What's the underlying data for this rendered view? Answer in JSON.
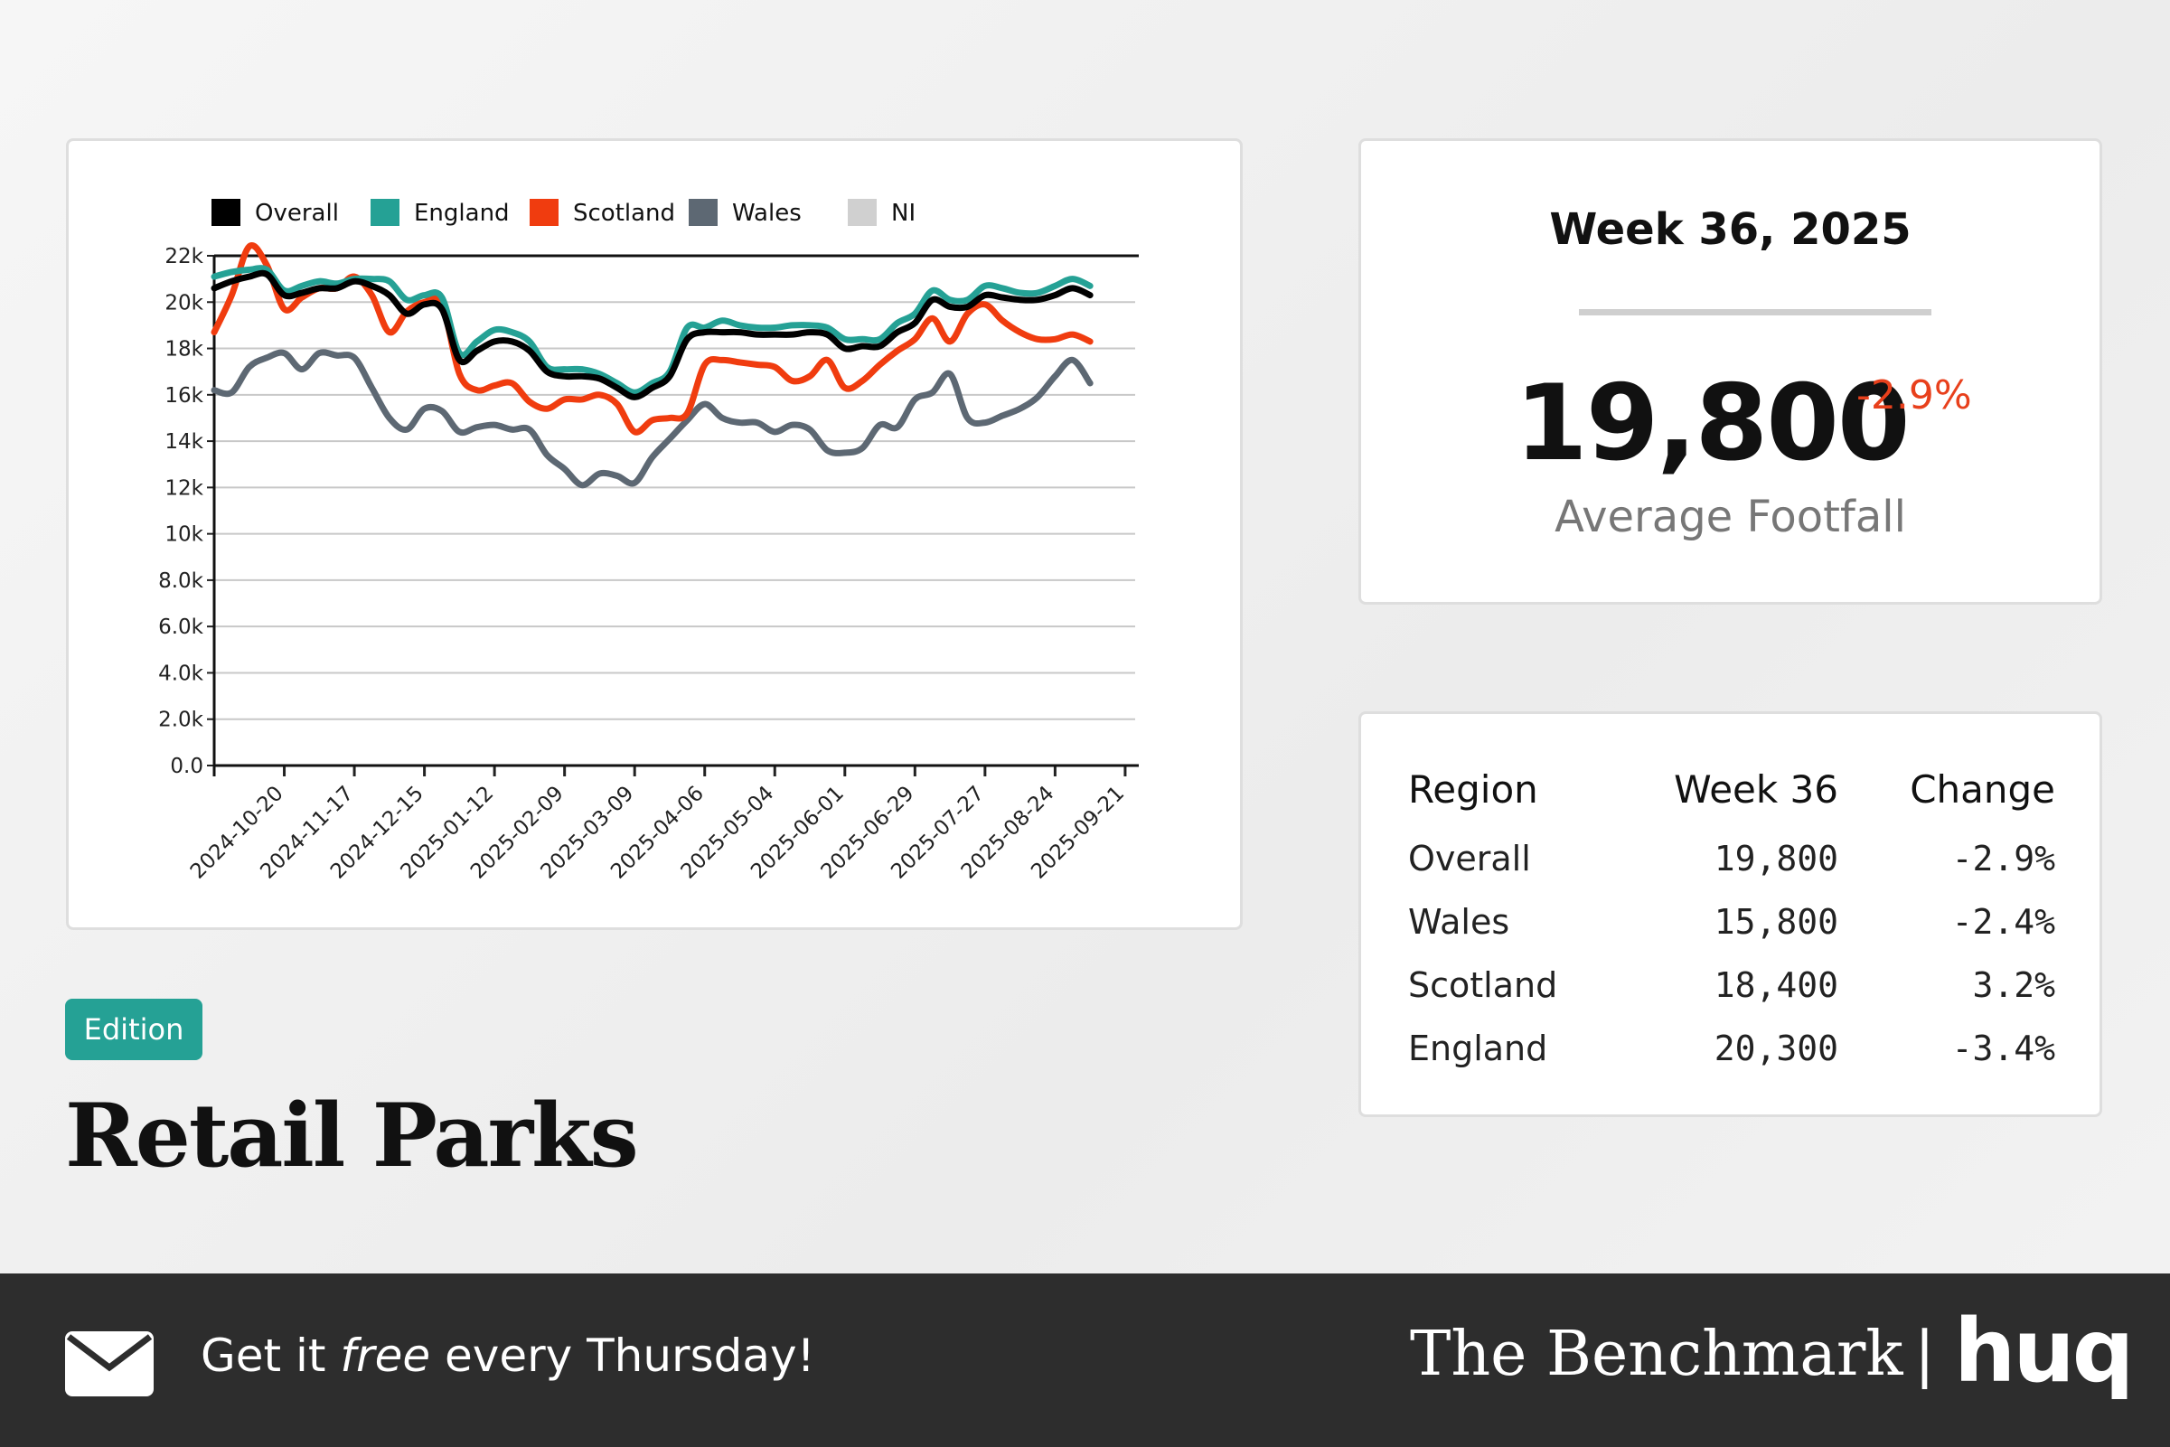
{
  "chart_data": {
    "type": "line",
    "x": [
      "2024-09-22",
      "2024-09-29",
      "2024-10-06",
      "2024-10-13",
      "2024-10-20",
      "2024-10-27",
      "2024-11-03",
      "2024-11-10",
      "2024-11-17",
      "2024-11-24",
      "2024-12-01",
      "2024-12-08",
      "2024-12-15",
      "2024-12-22",
      "2024-12-29",
      "2025-01-05",
      "2025-01-12",
      "2025-01-19",
      "2025-01-26",
      "2025-02-02",
      "2025-02-09",
      "2025-02-16",
      "2025-02-23",
      "2025-03-02",
      "2025-03-09",
      "2025-03-16",
      "2025-03-23",
      "2025-03-30",
      "2025-04-06",
      "2025-04-13",
      "2025-04-20",
      "2025-04-27",
      "2025-05-04",
      "2025-05-11",
      "2025-05-18",
      "2025-05-25",
      "2025-06-01",
      "2025-06-08",
      "2025-06-15",
      "2025-06-22",
      "2025-06-29",
      "2025-07-06",
      "2025-07-13",
      "2025-07-20",
      "2025-07-27",
      "2025-08-03",
      "2025-08-10",
      "2025-08-17",
      "2025-08-24",
      "2025-08-31",
      "2025-09-07"
    ],
    "series": [
      {
        "name": "Overall",
        "color": "#000000",
        "values": [
          20600,
          20900,
          21100,
          21200,
          20300,
          20400,
          20600,
          20600,
          20900,
          20700,
          20300,
          19500,
          19900,
          19700,
          17500,
          17900,
          18300,
          18300,
          17900,
          17000,
          16800,
          16800,
          16700,
          16300,
          15900,
          16300,
          16800,
          18400,
          18700,
          18700,
          18700,
          18600,
          18600,
          18600,
          18700,
          18600,
          18000,
          18100,
          18100,
          18700,
          19100,
          20100,
          19800,
          19800,
          20300,
          20200,
          20100,
          20100,
          20300,
          20600,
          20300
        ]
      },
      {
        "name": "England",
        "color": "#25a195",
        "values": [
          21100,
          21300,
          21400,
          21400,
          20500,
          20700,
          20900,
          20800,
          21000,
          21000,
          20900,
          20100,
          20300,
          20200,
          17800,
          18300,
          18800,
          18700,
          18300,
          17200,
          17100,
          17100,
          16900,
          16500,
          16100,
          16500,
          17000,
          18900,
          18900,
          19200,
          19000,
          18900,
          18900,
          19000,
          19000,
          18900,
          18400,
          18400,
          18400,
          19100,
          19500,
          20500,
          20100,
          20100,
          20700,
          20600,
          20400,
          20400,
          20700,
          21000,
          20700
        ]
      },
      {
        "name": "Scotland",
        "color": "#f03c0f",
        "values": [
          18700,
          20300,
          22400,
          21600,
          19700,
          20200,
          20600,
          20600,
          21100,
          20300,
          18700,
          19600,
          20000,
          19900,
          16900,
          16200,
          16400,
          16500,
          15700,
          15400,
          15800,
          15800,
          16000,
          15600,
          14400,
          14900,
          15000,
          15200,
          17300,
          17500,
          17400,
          17300,
          17200,
          16600,
          16800,
          17500,
          16300,
          16600,
          17300,
          17900,
          18400,
          19300,
          18300,
          19500,
          19900,
          19200,
          18700,
          18400,
          18400,
          18600,
          18300
        ]
      },
      {
        "name": "Wales",
        "color": "#5d6873",
        "values": [
          16200,
          16100,
          17200,
          17600,
          17800,
          17100,
          17800,
          17700,
          17600,
          16300,
          15000,
          14500,
          15400,
          15300,
          14400,
          14600,
          14700,
          14500,
          14500,
          13400,
          12800,
          12100,
          12600,
          12500,
          12200,
          13300,
          14100,
          14900,
          15600,
          15000,
          14800,
          14800,
          14400,
          14700,
          14500,
          13600,
          13500,
          13700,
          14700,
          14600,
          15800,
          16100,
          16900,
          15000,
          14800,
          15100,
          15400,
          15900,
          16800,
          17500,
          16500
        ]
      },
      {
        "name": "NI",
        "color": "#d0d0d0",
        "values": [
          null,
          null,
          null,
          null,
          null,
          null,
          null,
          null,
          null,
          null,
          null,
          null,
          null,
          null,
          null,
          null,
          null,
          null,
          null,
          null,
          null,
          null,
          null,
          null,
          null,
          null,
          null,
          null,
          null,
          null,
          null,
          null,
          null,
          null,
          null,
          null,
          null,
          null,
          null,
          null,
          null,
          null,
          null,
          null,
          null,
          null,
          null,
          null,
          null,
          null,
          null
        ]
      }
    ],
    "xlim": [
      "2024-09-22",
      "2025-09-25"
    ],
    "xticks": [
      "2024-10-20",
      "2024-11-17",
      "2024-12-15",
      "2025-01-12",
      "2025-02-09",
      "2025-03-09",
      "2025-04-06",
      "2025-05-04",
      "2025-06-01",
      "2025-06-29",
      "2025-07-27",
      "2025-08-24",
      "2025-09-21"
    ],
    "ylim": [
      0,
      22000
    ],
    "yticks": [
      {
        "value": 0,
        "label": "0.0"
      },
      {
        "value": 2000,
        "label": "2.0k"
      },
      {
        "value": 4000,
        "label": "4.0k"
      },
      {
        "value": 6000,
        "label": "6.0k"
      },
      {
        "value": 8000,
        "label": "8.0k"
      },
      {
        "value": 10000,
        "label": "10k"
      },
      {
        "value": 12000,
        "label": "12k"
      },
      {
        "value": 14000,
        "label": "14k"
      },
      {
        "value": 16000,
        "label": "16k"
      },
      {
        "value": 18000,
        "label": "18k"
      },
      {
        "value": 20000,
        "label": "20k"
      },
      {
        "value": 22000,
        "label": "22k"
      }
    ],
    "grid": true
  },
  "kpi": {
    "period": "Week 36, 2025",
    "value": "19,800",
    "change": "-2.9%",
    "label": "Average Footfall"
  },
  "table": {
    "header": [
      "Region",
      "Week 36",
      "Change"
    ],
    "rows": [
      [
        "Overall",
        "19,800",
        "-2.9%"
      ],
      [
        "Wales",
        "15,800",
        "-2.4%"
      ],
      [
        "Scotland",
        "18,400",
        "3.2%"
      ],
      [
        "England",
        "20,300",
        "-3.4%"
      ]
    ]
  },
  "edition": "Edition",
  "title": "Retail Parks",
  "footer": {
    "cta": [
      "Get it ",
      "free",
      " every Thursday!"
    ],
    "brand": "The Benchmark",
    "logo": "huq"
  }
}
